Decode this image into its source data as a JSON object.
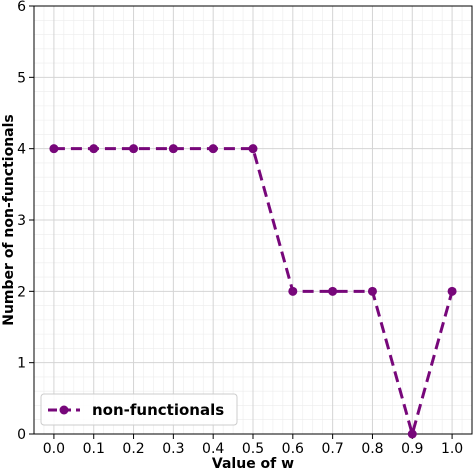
{
  "chart_data": {
    "type": "line",
    "title": "",
    "xlabel": "Value of w",
    "ylabel": "Number of non-functionals",
    "xlim": [
      -0.05,
      1.05
    ],
    "ylim": [
      0,
      6
    ],
    "x_ticks": [
      "0.0",
      "0.1",
      "0.2",
      "0.3",
      "0.4",
      "0.5",
      "0.6",
      "0.7",
      "0.8",
      "0.9",
      "1.0"
    ],
    "y_ticks": [
      "0",
      "1",
      "2",
      "3",
      "4",
      "5",
      "6"
    ],
    "grid": true,
    "minor_grid": true,
    "legend_position": "lower-left",
    "series": [
      {
        "name": "non-functionals",
        "color": "#77077a",
        "line_style": "dashed",
        "marker": "circle",
        "x": [
          0.0,
          0.1,
          0.2,
          0.3,
          0.4,
          0.5,
          0.6,
          0.7,
          0.8,
          0.9,
          1.0
        ],
        "values": [
          4,
          4,
          4,
          4,
          4,
          4,
          2,
          2,
          2,
          0,
          2
        ]
      }
    ]
  }
}
